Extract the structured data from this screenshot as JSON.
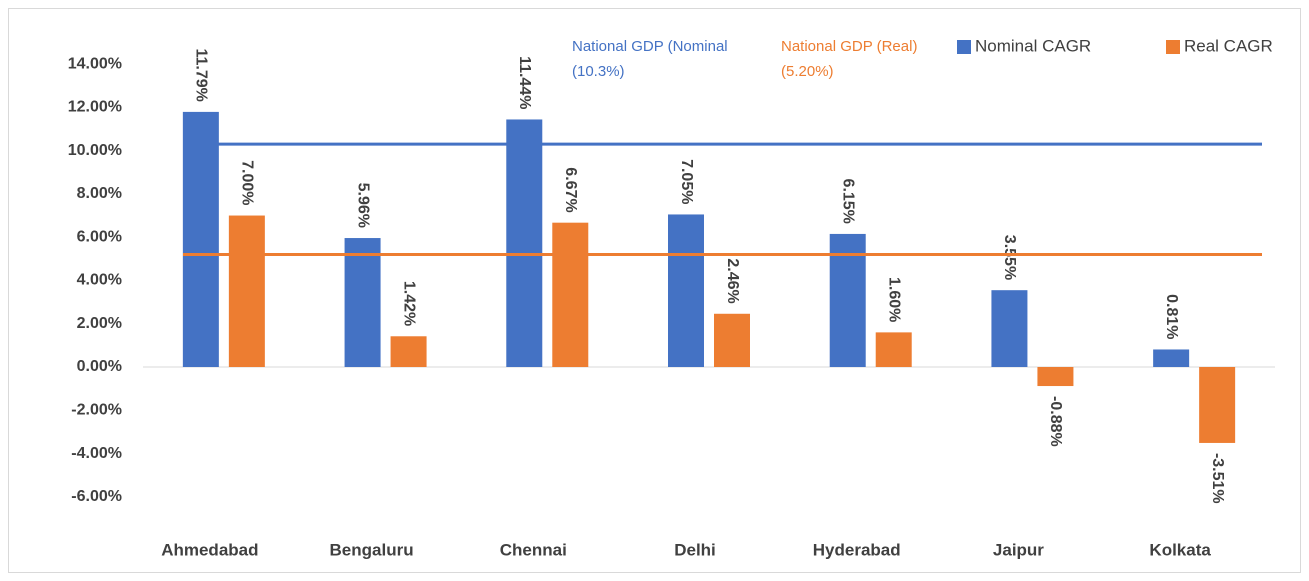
{
  "chart_data": {
    "type": "bar",
    "categories": [
      "Ahmedabad",
      "Bengaluru",
      "Chennai",
      "Delhi",
      "Hyderabad",
      "Jaipur",
      "Kolkata"
    ],
    "series": [
      {
        "name": "Nominal CAGR",
        "color": "#4472c4",
        "values": [
          11.79,
          5.96,
          11.44,
          7.05,
          6.15,
          3.55,
          0.81
        ],
        "value_labels": [
          "11.79%",
          "5.96%",
          "11.44%",
          "7.05%",
          "6.15%",
          "3.55%",
          "0.81%"
        ]
      },
      {
        "name": "Real CAGR",
        "color": "#ed7d31",
        "values": [
          7.0,
          1.42,
          6.67,
          2.46,
          1.6,
          -0.88,
          -3.51
        ],
        "value_labels": [
          "7.00%",
          "1.42%",
          "6.67%",
          "2.46%",
          "1.60%",
          "-0.88%",
          "-3.51%"
        ]
      }
    ],
    "reference_lines": [
      {
        "value": 10.3,
        "color": "#4472c4",
        "label": [
          "National GDP (Nominal",
          "(10.3%)"
        ]
      },
      {
        "value": 5.2,
        "color": "#ed7d31",
        "label": [
          "National GDP (Real)",
          "(5.20%)"
        ]
      }
    ],
    "ylim": [
      -8,
      16
    ],
    "yticks": [
      {
        "value": -6,
        "label": "-6.00%"
      },
      {
        "value": -4,
        "label": "-4.00%"
      },
      {
        "value": -2,
        "label": "-2.00%"
      },
      {
        "value": 0,
        "label": "0.00%"
      },
      {
        "value": 2,
        "label": "2.00%"
      },
      {
        "value": 4,
        "label": "4.00%"
      },
      {
        "value": 6,
        "label": "6.00%"
      },
      {
        "value": 8,
        "label": "8.00%"
      },
      {
        "value": 10,
        "label": "10.00%"
      },
      {
        "value": 12,
        "label": "12.00%"
      },
      {
        "value": 14,
        "label": "14.00%"
      }
    ],
    "grid": false,
    "legend": "top-right"
  }
}
